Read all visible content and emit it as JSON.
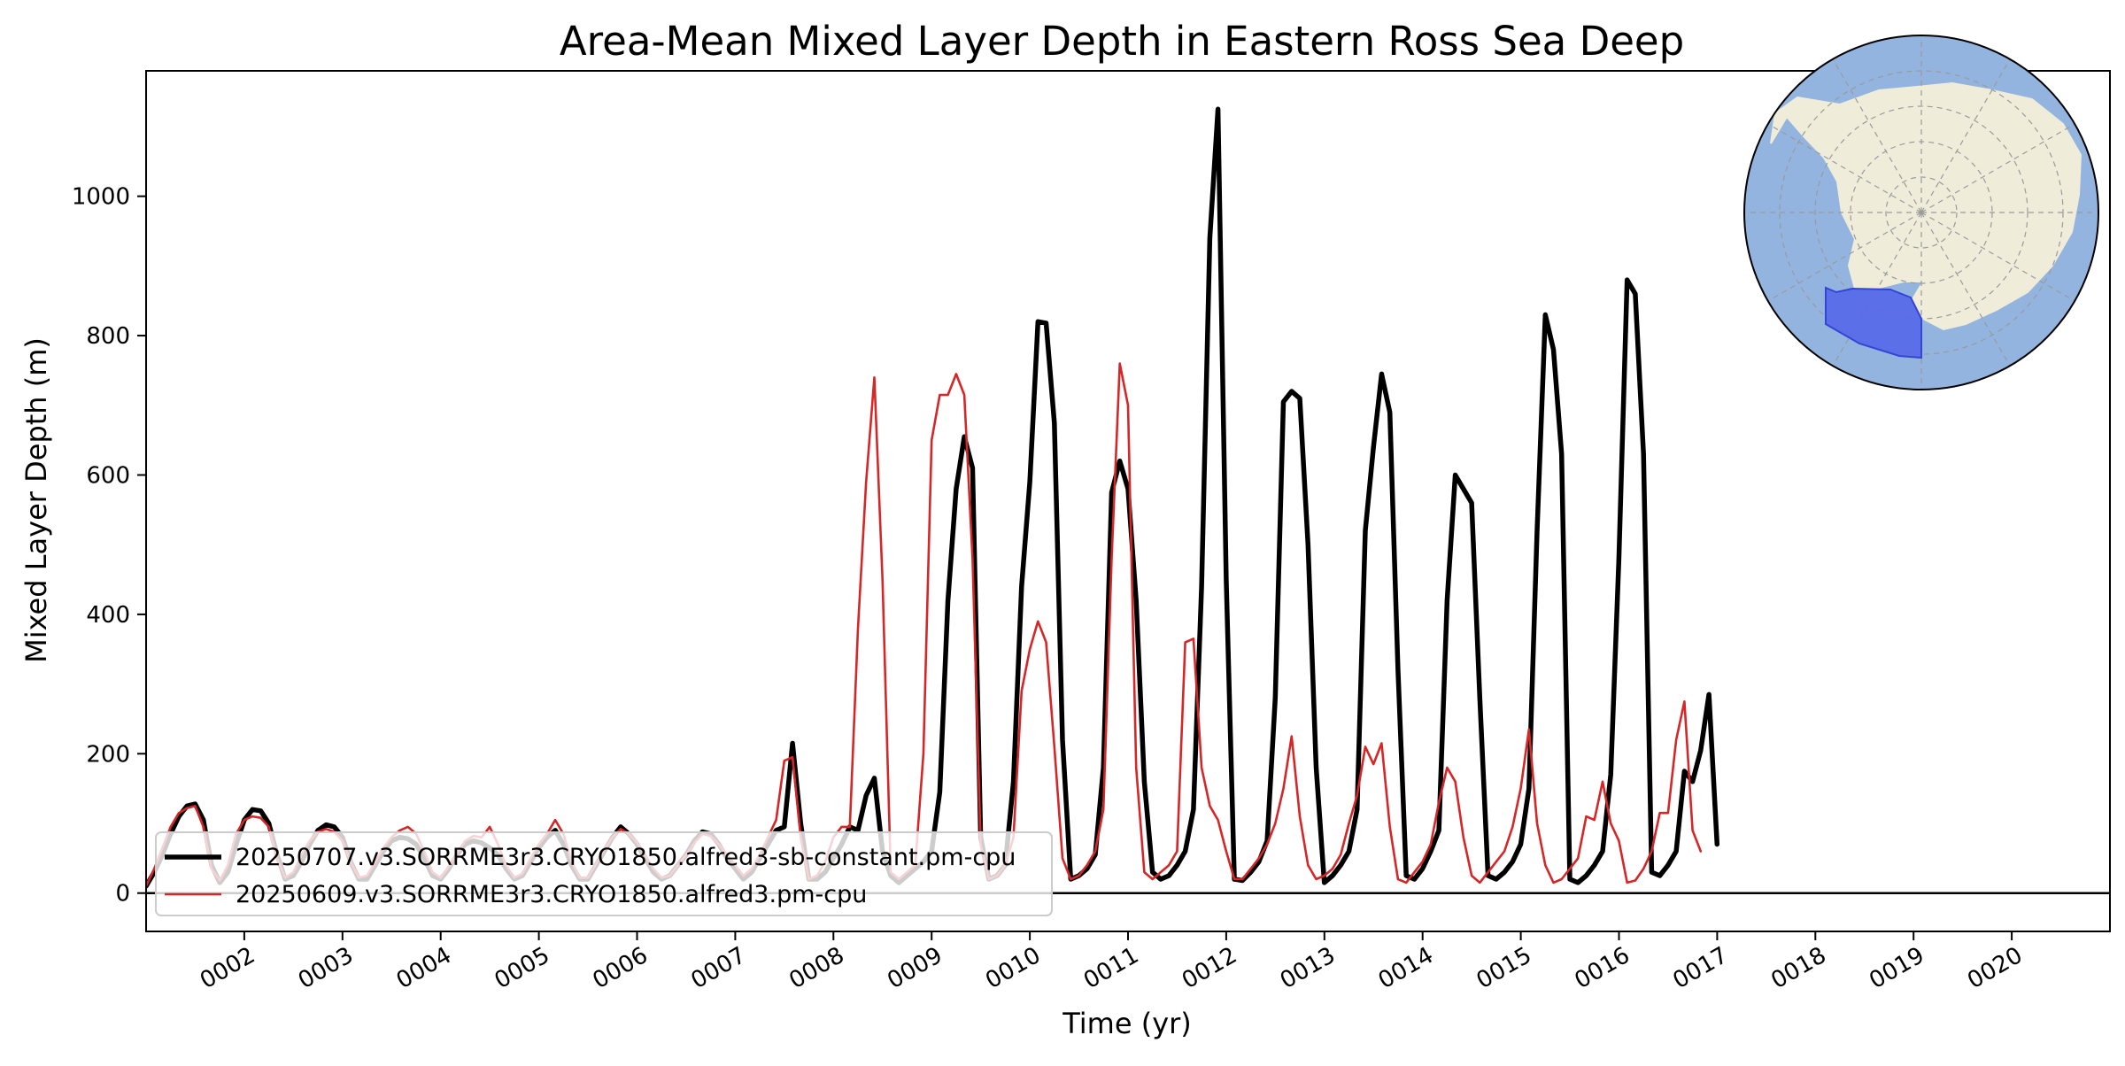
{
  "chart_data": {
    "type": "line",
    "title": "Area-Mean Mixed Layer Depth in Eastern Ross Sea Deep",
    "xlabel": "Time (yr)",
    "ylabel": "Mixed Layer Depth (m)",
    "xlim": [
      1.0,
      21.0
    ],
    "ylim": [
      -55,
      1180
    ],
    "x_ticks": [
      2,
      3,
      4,
      5,
      6,
      7,
      8,
      9,
      10,
      11,
      12,
      13,
      14,
      15,
      16,
      17,
      18,
      19,
      20
    ],
    "x_tick_labels": [
      "0002",
      "0003",
      "0004",
      "0005",
      "0006",
      "0007",
      "0008",
      "0009",
      "0010",
      "0011",
      "0012",
      "0013",
      "0014",
      "0015",
      "0016",
      "0017",
      "0018",
      "0019",
      "0020"
    ],
    "y_ticks": [
      0,
      200,
      400,
      600,
      800,
      1000
    ],
    "y_tick_labels": [
      "0",
      "200",
      "400",
      "600",
      "800",
      "1000"
    ],
    "hline": 0,
    "grid": false,
    "legend_position": "lower-left",
    "x_start": 1.0,
    "x_step": 0.08333,
    "series": [
      {
        "name": "20250707.v3.SORRME3r3.CRYO1850.alfred3-sb-constant.pm-cpu",
        "color": "#000000",
        "values": [
          10,
          30,
          55,
          85,
          110,
          125,
          128,
          105,
          40,
          15,
          30,
          70,
          105,
          120,
          118,
          100,
          55,
          20,
          25,
          45,
          70,
          90,
          98,
          95,
          80,
          45,
          20,
          20,
          40,
          60,
          75,
          80,
          78,
          70,
          50,
          25,
          20,
          35,
          55,
          70,
          75,
          72,
          65,
          55,
          35,
          20,
          25,
          45,
          65,
          80,
          90,
          70,
          40,
          20,
          20,
          40,
          60,
          80,
          95,
          85,
          70,
          50,
          30,
          20,
          25,
          40,
          55,
          75,
          88,
          85,
          70,
          50,
          35,
          20,
          30,
          50,
          70,
          90,
          95,
          215,
          100,
          20,
          20,
          30,
          50,
          70,
          95,
          90,
          140,
          165,
          60,
          25,
          15,
          25,
          35,
          45,
          60,
          145,
          420,
          580,
          655,
          610,
          80,
          20,
          25,
          40,
          160,
          440,
          590,
          820,
          818,
          675,
          220,
          20,
          25,
          35,
          55,
          180,
          575,
          620,
          580,
          420,
          160,
          30,
          20,
          25,
          40,
          60,
          120,
          440,
          940,
          1125,
          450,
          20,
          18,
          30,
          45,
          75,
          280,
          705,
          720,
          710,
          500,
          180,
          15,
          25,
          40,
          60,
          120,
          520,
          640,
          745,
          690,
          320,
          25,
          20,
          35,
          60,
          90,
          420,
          600,
          580,
          560,
          280,
          25,
          20,
          30,
          45,
          70,
          150,
          520,
          830,
          780,
          630,
          20,
          15,
          25,
          40,
          60,
          170,
          480,
          880,
          860,
          630,
          30,
          25,
          40,
          60,
          175,
          160,
          205,
          285,
          70
        ]
      },
      {
        "name": "20250609.v3.SORRME3r3.CRYO1850.alfred3.pm-cpu",
        "color": "#d62728",
        "values": [
          10,
          35,
          65,
          95,
          115,
          122,
          125,
          95,
          35,
          18,
          40,
          85,
          105,
          110,
          108,
          95,
          50,
          22,
          30,
          55,
          75,
          88,
          92,
          88,
          75,
          45,
          22,
          25,
          45,
          65,
          80,
          90,
          95,
          85,
          60,
          30,
          22,
          38,
          58,
          75,
          82,
          80,
          95,
          70,
          40,
          22,
          28,
          50,
          70,
          85,
          105,
          85,
          45,
          22,
          22,
          42,
          62,
          80,
          92,
          85,
          72,
          55,
          35,
          22,
          25,
          40,
          55,
          72,
          85,
          82,
          70,
          55,
          40,
          25,
          35,
          55,
          80,
          105,
          190,
          195,
          80,
          20,
          25,
          45,
          80,
          95,
          95,
          380,
          590,
          740,
          450,
          30,
          20,
          30,
          40,
          200,
          650,
          715,
          715,
          745,
          715,
          480,
          70,
          20,
          25,
          40,
          80,
          290,
          350,
          390,
          360,
          210,
          50,
          20,
          25,
          40,
          60,
          120,
          480,
          760,
          700,
          180,
          30,
          20,
          30,
          40,
          60,
          360,
          365,
          180,
          125,
          105,
          60,
          20,
          20,
          35,
          50,
          70,
          100,
          150,
          225,
          110,
          40,
          20,
          25,
          35,
          55,
          100,
          140,
          210,
          185,
          215,
          95,
          20,
          15,
          30,
          45,
          70,
          130,
          180,
          160,
          80,
          25,
          15,
          30,
          45,
          60,
          95,
          150,
          235,
          100,
          40,
          15,
          20,
          35,
          50,
          110,
          105,
          160,
          100,
          75,
          15,
          18,
          35,
          60,
          115,
          115,
          220,
          275,
          90,
          60
        ]
      }
    ],
    "inset": {
      "type": "map",
      "region": "Eastern Ross Sea Deep",
      "ocean_color": "#93b4de",
      "land_color": "#efecda",
      "region_color": "#5567ea"
    }
  }
}
